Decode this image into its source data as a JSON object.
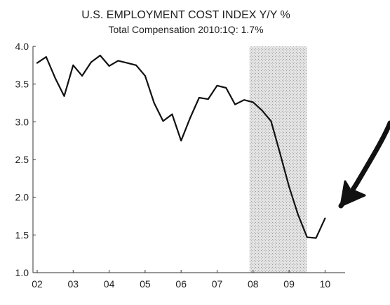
{
  "chart_data": {
    "type": "line",
    "title": "U.S. EMPLOYMENT COST INDEX Y/Y %",
    "subtitle": "Total Compensation    2010:1Q: 1.7%",
    "x_tick_labels": [
      "02",
      "03",
      "04",
      "05",
      "06",
      "07",
      "08",
      "09",
      "10"
    ],
    "y_tick_labels": [
      "1.0",
      "1.5",
      "2.0",
      "2.5",
      "3.0",
      "3.5",
      "4.0"
    ],
    "ylim": [
      1.0,
      4.0
    ],
    "xlim": [
      2002.0,
      2010.6
    ],
    "grid": false,
    "shaded_recession": [
      2007.9,
      2009.5
    ],
    "colors": {
      "line": "#111111",
      "recession": "#d9d9d9",
      "arrow": "#111111"
    },
    "series": [
      {
        "x": [
          2002.0,
          2002.25,
          2002.5,
          2002.75,
          2003.0,
          2003.25,
          2003.5,
          2003.75,
          2004.0,
          2004.25,
          2004.5,
          2004.75,
          2005.0,
          2005.25,
          2005.5,
          2005.75,
          2006.0,
          2006.25,
          2006.5,
          2006.75,
          2007.0,
          2007.25,
          2007.5,
          2007.75,
          2008.0,
          2008.25,
          2008.5,
          2008.75,
          2009.0,
          2009.25,
          2009.5,
          2009.75,
          2010.0
        ],
        "values": [
          3.78,
          3.86,
          3.58,
          3.34,
          3.75,
          3.61,
          3.79,
          3.88,
          3.74,
          3.81,
          3.78,
          3.75,
          3.61,
          3.25,
          3.01,
          3.1,
          2.75,
          3.05,
          3.32,
          3.3,
          3.48,
          3.45,
          3.23,
          3.29,
          3.26,
          3.15,
          3.01,
          2.58,
          2.14,
          1.77,
          1.47,
          1.46,
          1.72
        ]
      }
    ]
  }
}
